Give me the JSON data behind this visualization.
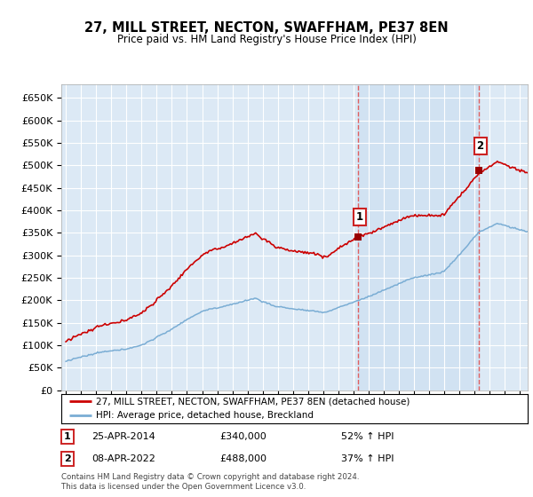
{
  "title": "27, MILL STREET, NECTON, SWAFFHAM, PE37 8EN",
  "subtitle": "Price paid vs. HM Land Registry's House Price Index (HPI)",
  "ylabel_ticks": [
    "£0",
    "£50K",
    "£100K",
    "£150K",
    "£200K",
    "£250K",
    "£300K",
    "£350K",
    "£400K",
    "£450K",
    "£500K",
    "£550K",
    "£600K",
    "£650K"
  ],
  "ytick_values": [
    0,
    50000,
    100000,
    150000,
    200000,
    250000,
    300000,
    350000,
    400000,
    450000,
    500000,
    550000,
    600000,
    650000
  ],
  "ylim": [
    0,
    680000
  ],
  "background_color": "#ffffff",
  "plot_bg_color": "#dce9f5",
  "grid_color": "#ffffff",
  "sale1_date_x": 2014.32,
  "sale1_price": 340000,
  "sale1_label": "1",
  "sale2_date_x": 2022.27,
  "sale2_price": 488000,
  "sale2_label": "2",
  "vline_color": "#e06060",
  "red_line_color": "#cc0000",
  "blue_line_color": "#7aadd4",
  "legend_label_red": "27, MILL STREET, NECTON, SWAFFHAM, PE37 8EN (detached house)",
  "legend_label_blue": "HPI: Average price, detached house, Breckland",
  "annotation1_date": "25-APR-2014",
  "annotation1_price": "£340,000",
  "annotation1_hpi": "52% ↑ HPI",
  "annotation2_date": "08-APR-2022",
  "annotation2_price": "£488,000",
  "annotation2_hpi": "37% ↑ HPI",
  "footer": "Contains HM Land Registry data © Crown copyright and database right 2024.\nThis data is licensed under the Open Government Licence v3.0.",
  "xmin": 1994.7,
  "xmax": 2025.5
}
